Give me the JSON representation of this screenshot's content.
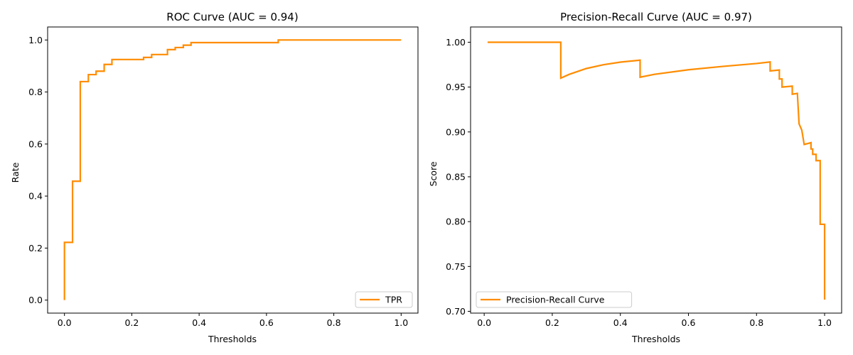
{
  "line_color": "#ff8c00",
  "chart_data": [
    {
      "type": "line",
      "title": "ROC Curve (AUC = 0.94)",
      "xlabel": "Thresholds",
      "ylabel": "Rate",
      "xlim": [
        -0.05,
        1.05
      ],
      "ylim": [
        -0.05,
        1.05
      ],
      "xticks": [
        "0.0",
        "0.2",
        "0.4",
        "0.6",
        "0.8",
        "1.0"
      ],
      "yticks": [
        "0.0",
        "0.2",
        "0.4",
        "0.6",
        "0.8",
        "1.0"
      ],
      "legend_position": "lower right",
      "grid": false,
      "series": [
        {
          "name": "TPR",
          "step": true,
          "x": [
            0.0,
            0.0,
            0.024,
            0.024,
            0.047,
            0.047,
            0.071,
            0.071,
            0.094,
            0.094,
            0.118,
            0.118,
            0.141,
            0.141,
            0.235,
            0.235,
            0.259,
            0.259,
            0.306,
            0.306,
            0.329,
            0.329,
            0.353,
            0.353,
            0.376,
            0.376,
            0.635,
            0.635,
            1.0
          ],
          "y": [
            0.0,
            0.222,
            0.222,
            0.457,
            0.457,
            0.84,
            0.84,
            0.867,
            0.867,
            0.88,
            0.88,
            0.906,
            0.906,
            0.925,
            0.925,
            0.933,
            0.933,
            0.944,
            0.944,
            0.963,
            0.963,
            0.971,
            0.971,
            0.98,
            0.98,
            0.99,
            0.99,
            1.0,
            1.0
          ]
        }
      ]
    },
    {
      "type": "line",
      "title": "Precision-Recall Curve (AUC = 0.97)",
      "xlabel": "Thresholds",
      "ylabel": "Score",
      "xlim": [
        -0.04,
        1.05
      ],
      "ylim": [
        0.698,
        1.017
      ],
      "xticks": [
        "0.0",
        "0.2",
        "0.4",
        "0.6",
        "0.8",
        "1.0"
      ],
      "yticks": [
        "0.70",
        "0.75",
        "0.80",
        "0.85",
        "0.90",
        "0.95",
        "1.00"
      ],
      "legend_position": "lower left",
      "grid": false,
      "series": [
        {
          "name": "Precision-Recall Curve",
          "x": [
            0.01,
            0.225,
            0.225,
            0.25,
            0.3,
            0.35,
            0.4,
            0.458,
            0.458,
            0.5,
            0.6,
            0.7,
            0.8,
            0.84,
            0.84,
            0.867,
            0.867,
            0.875,
            0.875,
            0.905,
            0.905,
            0.92,
            0.92,
            0.925,
            0.925,
            0.933,
            0.933,
            0.94,
            0.94,
            0.96,
            0.96,
            0.965,
            0.965,
            0.975,
            0.975,
            0.987,
            0.987,
            0.99,
            0.99,
            1.0,
            1.0
          ],
          "y": [
            1.0,
            1.0,
            0.96,
            0.9642,
            0.9707,
            0.9749,
            0.9778,
            0.98,
            0.961,
            0.9642,
            0.9693,
            0.973,
            0.9763,
            0.978,
            0.968,
            0.969,
            0.959,
            0.959,
            0.95,
            0.951,
            0.942,
            0.943,
            0.943,
            0.909,
            0.909,
            0.902,
            0.902,
            0.886,
            0.886,
            0.888,
            0.881,
            0.881,
            0.875,
            0.875,
            0.868,
            0.868,
            0.797,
            0.797,
            0.797,
            0.797,
            0.713
          ]
        }
      ]
    }
  ]
}
